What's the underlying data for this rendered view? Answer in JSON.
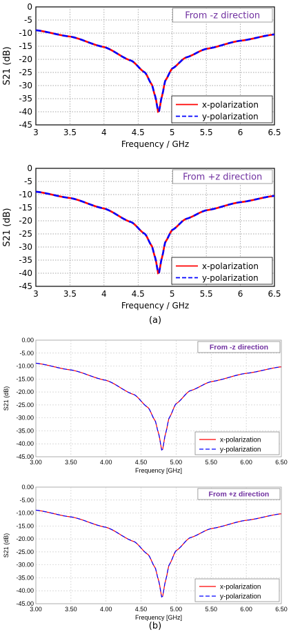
{
  "panel_labels": [
    "(a)",
    "(b)"
  ],
  "chart_data": [
    {
      "type": "line",
      "title": "From -z direction",
      "xlabel": "Frequency / GHz",
      "ylabel": "S21 (dB)",
      "xlim": [
        3,
        6.5
      ],
      "ylim": [
        -45,
        0
      ],
      "xticks": [
        "3",
        "3.5",
        "4",
        "4.5",
        "5",
        "5.5",
        "6",
        "6.5"
      ],
      "yticks": [
        "0",
        "-5",
        "-10",
        "-15",
        "-20",
        "-25",
        "-30",
        "-35",
        "-40",
        "-45"
      ],
      "grid": true,
      "legend_position": "bottom-right",
      "series": [
        {
          "name": "x-polarization",
          "color": "#ff0000",
          "dash": "solid"
        },
        {
          "name": "y-polarization",
          "color": "#0000ff",
          "dash": "dashed"
        }
      ],
      "x": [
        3.0,
        3.5,
        4.0,
        4.4,
        4.6,
        4.7,
        4.75,
        4.8,
        4.85,
        4.9,
        5.0,
        5.2,
        5.5,
        6.0,
        6.5
      ],
      "y": [
        -8.9,
        -11.3,
        -15.3,
        -20.5,
        -25.0,
        -29.5,
        -34.0,
        -40.5,
        -34.0,
        -28.0,
        -23.5,
        -19.3,
        -16.0,
        -12.9,
        -10.5
      ]
    },
    {
      "type": "line",
      "title": "From +z direction",
      "xlabel": "Frequency / GHz",
      "ylabel": "S21 (dB)",
      "xlim": [
        3,
        6.5
      ],
      "ylim": [
        -45,
        0
      ],
      "xticks": [
        "3",
        "3.5",
        "4",
        "4.5",
        "5",
        "5.5",
        "6",
        "6.5"
      ],
      "yticks": [
        "0",
        "-5",
        "-10",
        "-15",
        "-20",
        "-25",
        "-30",
        "-35",
        "-40",
        "-45"
      ],
      "grid": true,
      "legend_position": "bottom-right",
      "series": [
        {
          "name": "x-polarization",
          "color": "#ff0000",
          "dash": "solid"
        },
        {
          "name": "y-polarization",
          "color": "#0000ff",
          "dash": "dashed"
        }
      ],
      "x": [
        3.0,
        3.5,
        4.0,
        4.4,
        4.6,
        4.7,
        4.75,
        4.8,
        4.85,
        4.9,
        5.0,
        5.2,
        5.5,
        6.0,
        6.5
      ],
      "y": [
        -8.9,
        -11.3,
        -15.3,
        -20.5,
        -25.0,
        -29.5,
        -34.0,
        -40.5,
        -34.0,
        -28.0,
        -23.5,
        -19.3,
        -16.0,
        -12.9,
        -10.5
      ]
    },
    {
      "type": "line",
      "title": "From -z direction",
      "xlabel": "Frequency [GHz]",
      "ylabel": "S21 (dB)",
      "xlim": [
        3,
        6.5
      ],
      "ylim": [
        -45,
        0
      ],
      "xticks": [
        "3.00",
        "3.50",
        "4.00",
        "4.50",
        "5.00",
        "5.50",
        "6.00",
        "6.50"
      ],
      "yticks": [
        "0.00",
        "-5.00",
        "-10.00",
        "-15.00",
        "-20.00",
        "-25.00",
        "-30.00",
        "-35.00",
        "-40.00",
        "-45.00"
      ],
      "grid": true,
      "legend_position": "bottom-right",
      "series": [
        {
          "name": "x-polarization",
          "color": "#ff0000",
          "dash": "solid"
        },
        {
          "name": "y-polarization",
          "color": "#0000ff",
          "dash": "dashed"
        }
      ],
      "x": [
        3.0,
        3.5,
        4.0,
        4.4,
        4.6,
        4.7,
        4.75,
        4.8,
        4.85,
        4.9,
        5.0,
        5.2,
        5.5,
        6.0,
        6.5
      ],
      "y": [
        -8.9,
        -11.5,
        -15.5,
        -21.0,
        -26.0,
        -31.0,
        -36.0,
        -43.0,
        -36.0,
        -30.0,
        -24.5,
        -19.5,
        -16.0,
        -12.8,
        -10.3
      ]
    },
    {
      "type": "line",
      "title": "From +z direction",
      "xlabel": "Frequency [GHz]",
      "ylabel": "S21 (dB)",
      "xlim": [
        3,
        6.5
      ],
      "ylim": [
        -45,
        0
      ],
      "xticks": [
        "3.00",
        "3.50",
        "4.00",
        "4.50",
        "5.00",
        "5.50",
        "6.00",
        "6.50"
      ],
      "yticks": [
        "0.00",
        "-5.00",
        "-10.00",
        "-15.00",
        "-20.00",
        "-25.00",
        "-30.00",
        "-35.00",
        "-40.00",
        "-45.00"
      ],
      "grid": true,
      "legend_position": "bottom-right",
      "series": [
        {
          "name": "x-polarization",
          "color": "#ff0000",
          "dash": "solid"
        },
        {
          "name": "y-polarization",
          "color": "#0000ff",
          "dash": "dashed"
        }
      ],
      "x": [
        3.0,
        3.5,
        4.0,
        4.4,
        4.6,
        4.7,
        4.75,
        4.8,
        4.85,
        4.9,
        5.0,
        5.2,
        5.5,
        6.0,
        6.5
      ],
      "y": [
        -8.9,
        -11.5,
        -15.5,
        -21.0,
        -26.0,
        -31.0,
        -36.0,
        -43.0,
        -36.0,
        -30.0,
        -24.5,
        -19.5,
        -16.0,
        -12.8,
        -10.3
      ]
    }
  ]
}
